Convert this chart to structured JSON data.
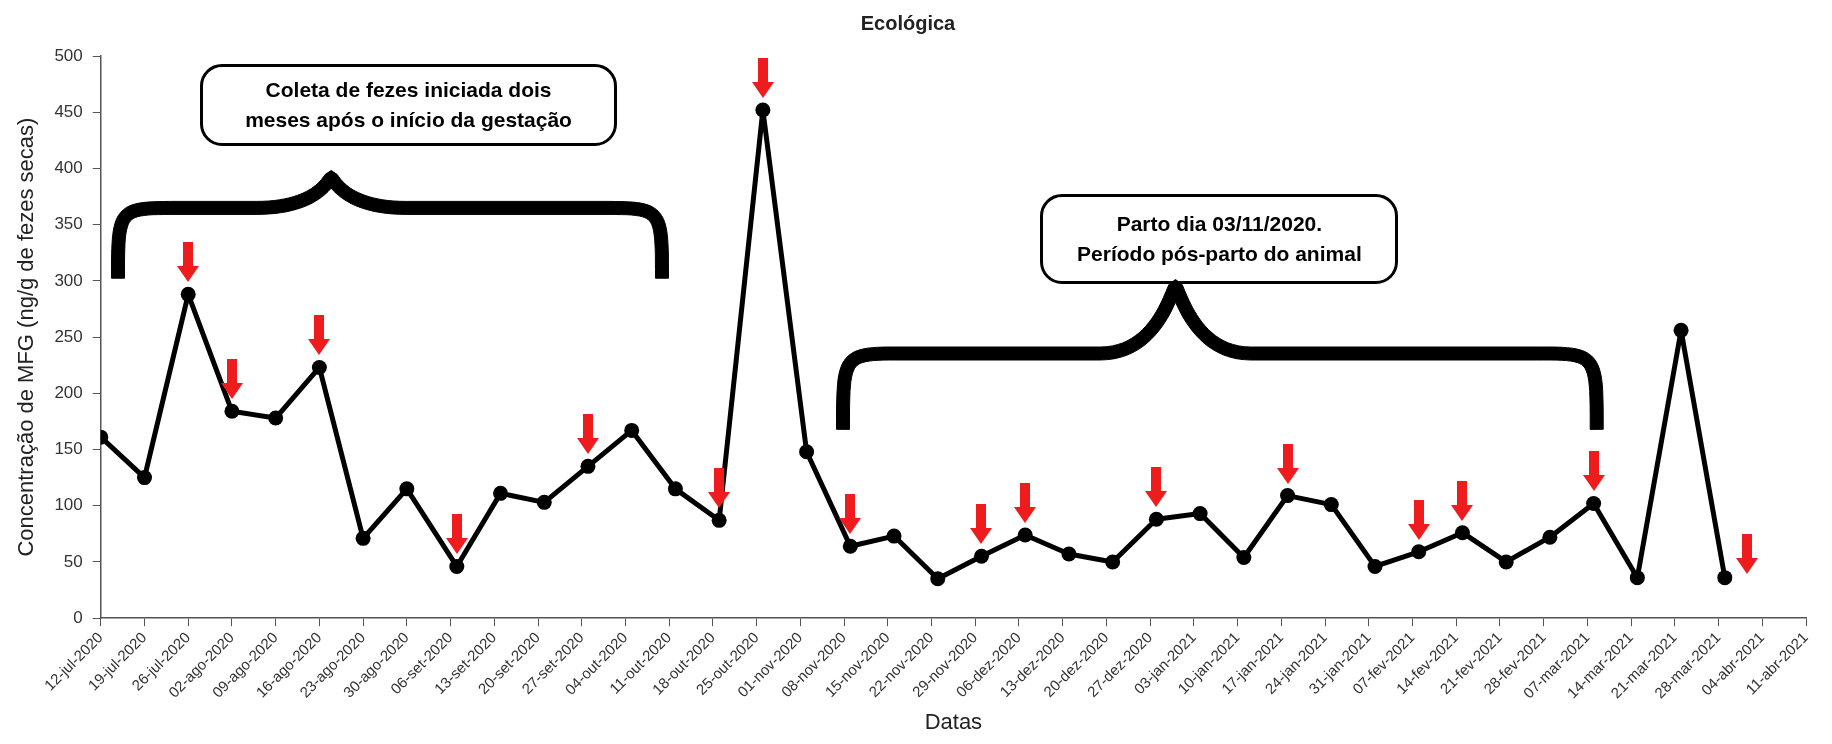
{
  "chart_data": {
    "type": "line",
    "title": "Ecológica",
    "xlabel": "Datas",
    "ylabel": "Concentração de MFG (ng/g de fezes secas)",
    "x": [
      "2020-07-12",
      "2020-07-19",
      "2020-07-26",
      "2020-08-02",
      "2020-08-09",
      "2020-08-16",
      "2020-08-23",
      "2020-08-30",
      "2020-09-07",
      "2020-09-14",
      "2020-09-21",
      "2020-09-28",
      "2020-10-05",
      "2020-10-12",
      "2020-10-19",
      "2020-10-26",
      "2020-11-02",
      "2020-11-09",
      "2020-11-16",
      "2020-11-23",
      "2020-11-30",
      "2020-12-07",
      "2020-12-14",
      "2020-12-21",
      "2020-12-28",
      "2021-01-04",
      "2021-01-11",
      "2021-01-18",
      "2021-01-25",
      "2021-02-01",
      "2021-02-08",
      "2021-02-15",
      "2021-02-22",
      "2021-03-01",
      "2021-03-08",
      "2021-03-15",
      "2021-03-22",
      "2021-03-29"
    ],
    "series": [
      {
        "color": "#000000",
        "values": [
          161,
          125,
          288,
          184,
          178,
          223,
          71,
          115,
          46,
          111,
          103,
          135,
          167,
          115,
          87,
          452,
          148,
          64,
          73,
          35,
          55,
          74,
          57,
          50,
          88,
          93,
          54,
          109,
          101,
          46,
          59,
          76,
          50,
          72,
          102,
          36,
          256,
          36
        ]
      }
    ],
    "xlim": [
      "2020-07-12",
      "2021-04-11"
    ],
    "xticks": [
      {
        "value": "2020-07-12",
        "label": "12-jul-2020"
      },
      {
        "value": "2020-07-19",
        "label": "19-jul-2020"
      },
      {
        "value": "2020-07-26",
        "label": "26-jul-2020"
      },
      {
        "value": "2020-08-02",
        "label": "02-ago-2020"
      },
      {
        "value": "2020-08-09",
        "label": "09-ago-2020"
      },
      {
        "value": "2020-08-16",
        "label": "16-ago-2020"
      },
      {
        "value": "2020-08-23",
        "label": "23-ago-2020"
      },
      {
        "value": "2020-08-30",
        "label": "30-ago-2020"
      },
      {
        "value": "2020-09-06",
        "label": "06-set-2020"
      },
      {
        "value": "2020-09-13",
        "label": "13-set-2020"
      },
      {
        "value": "2020-09-20",
        "label": "20-set-2020"
      },
      {
        "value": "2020-09-27",
        "label": "27-set-2020"
      },
      {
        "value": "2020-10-04",
        "label": "04-out-2020"
      },
      {
        "value": "2020-10-11",
        "label": "11-out-2020"
      },
      {
        "value": "2020-10-18",
        "label": "18-out-2020"
      },
      {
        "value": "2020-10-25",
        "label": "25-out-2020"
      },
      {
        "value": "2020-11-01",
        "label": "01-nov-2020"
      },
      {
        "value": "2020-11-08",
        "label": "08-nov-2020"
      },
      {
        "value": "2020-11-15",
        "label": "15-nov-2020"
      },
      {
        "value": "2020-11-22",
        "label": "22-nov-2020"
      },
      {
        "value": "2020-11-29",
        "label": "29-nov-2020"
      },
      {
        "value": "2020-12-06",
        "label": "06-dez-2020"
      },
      {
        "value": "2020-12-13",
        "label": "13-dez-2020"
      },
      {
        "value": "2020-12-20",
        "label": "20-dez-2020"
      },
      {
        "value": "2020-12-27",
        "label": "27-dez-2020"
      },
      {
        "value": "2021-01-03",
        "label": "03-jan-2021"
      },
      {
        "value": "2021-01-10",
        "label": "10-jan-2021"
      },
      {
        "value": "2021-01-17",
        "label": "17-jan-2021"
      },
      {
        "value": "2021-01-24",
        "label": "24-jan-2021"
      },
      {
        "value": "2021-01-31",
        "label": "31-jan-2021"
      },
      {
        "value": "2021-02-07",
        "label": "07-fev-2021"
      },
      {
        "value": "2021-02-14",
        "label": "14-fev-2021"
      },
      {
        "value": "2021-02-21",
        "label": "21-fev-2021"
      },
      {
        "value": "2021-02-28",
        "label": "28-fev-2021"
      },
      {
        "value": "2021-03-07",
        "label": "07-mar-2021"
      },
      {
        "value": "2021-03-14",
        "label": "14-mar-2021"
      },
      {
        "value": "2021-03-21",
        "label": "21-mar-2021"
      },
      {
        "value": "2021-03-28",
        "label": "28-mar-2021"
      },
      {
        "value": "2021-04-04",
        "label": "04-abr-2021"
      },
      {
        "value": "2021-04-11",
        "label": "11-abr-2021"
      }
    ],
    "ylim": [
      0,
      500
    ],
    "yticks": [
      0,
      50,
      100,
      150,
      200,
      250,
      300,
      350,
      400,
      450,
      500
    ],
    "grid": false,
    "legend": false,
    "marker": "circle",
    "line_style": "solid",
    "annotations": [
      "Coleta de fezes iniciada dois meses após o início da gestação",
      "Parto dia 03/11/2020. Período pós-parto do animal"
    ]
  }
}
